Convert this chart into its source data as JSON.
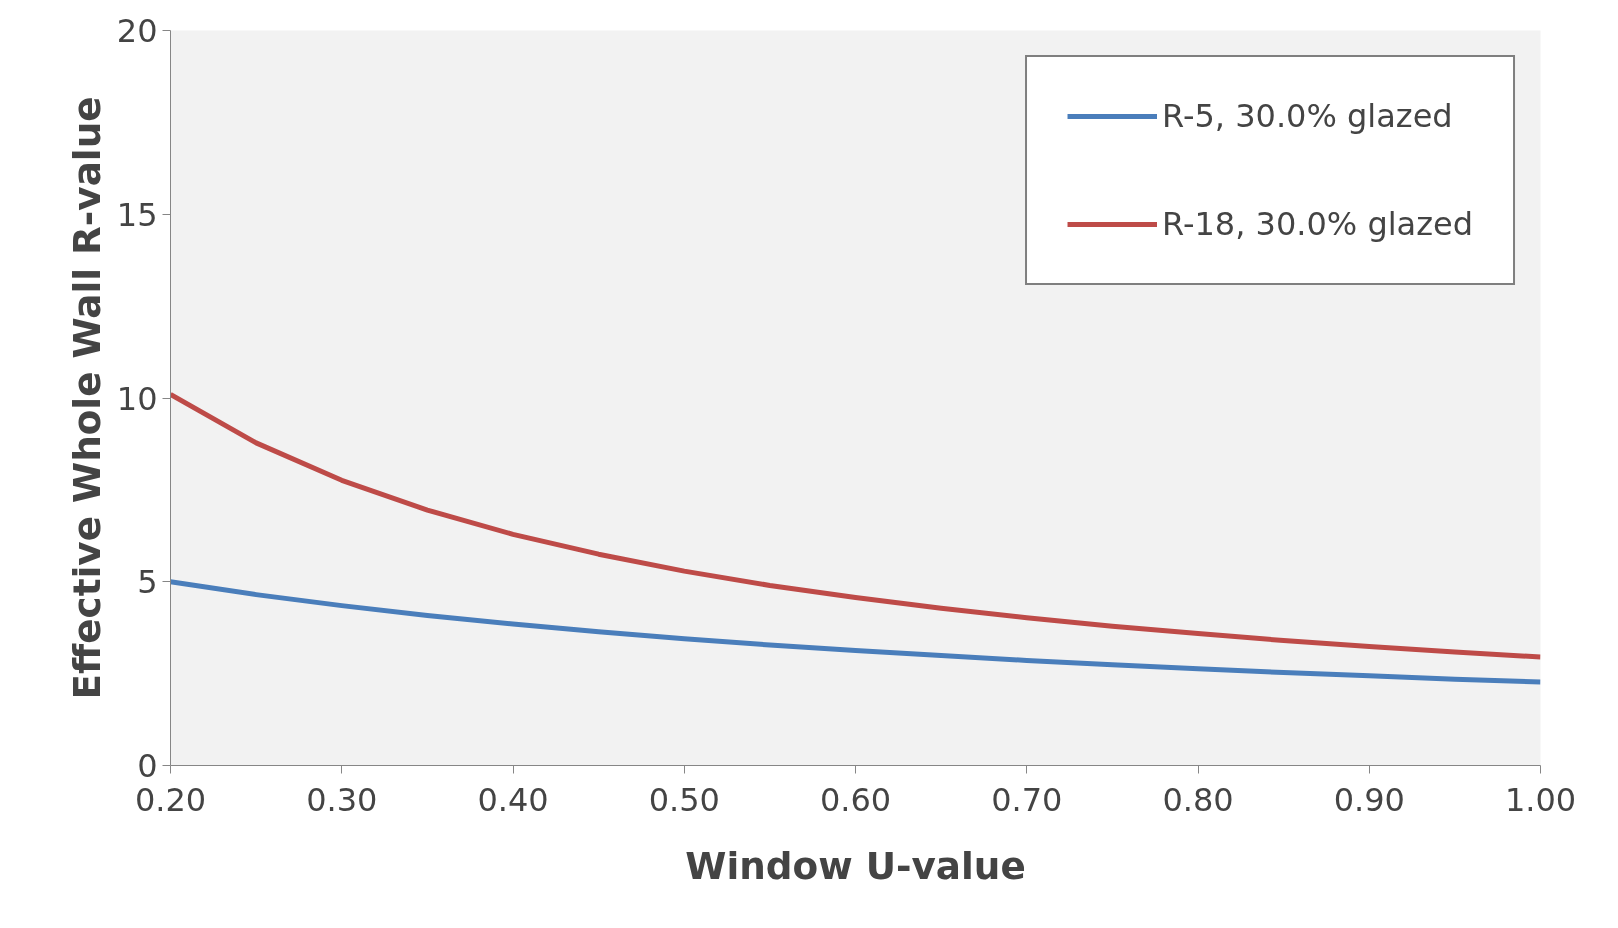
{
  "chart_data": {
    "type": "line",
    "xlabel": "Window U-value",
    "ylabel": "Effective Whole Wall R-value",
    "x": [
      0.2,
      0.25,
      0.3,
      0.35,
      0.4,
      0.45,
      0.5,
      0.55,
      0.6,
      0.65,
      0.7,
      0.75,
      0.8,
      0.85,
      0.9,
      0.95,
      1.0
    ],
    "series": [
      {
        "name": "R-5, 30.0% glazed",
        "color": "#4a7ebb",
        "values": [
          5.0,
          4.65,
          4.35,
          4.08,
          3.85,
          3.64,
          3.45,
          3.28,
          3.13,
          2.99,
          2.86,
          2.74,
          2.63,
          2.53,
          2.44,
          2.35,
          2.27
        ]
      },
      {
        "name": "R-18, 30.0% glazed",
        "color": "#be4b48",
        "values": [
          10.1,
          8.78,
          7.76,
          6.95,
          6.29,
          5.75,
          5.29,
          4.9,
          4.57,
          4.28,
          4.02,
          3.79,
          3.59,
          3.4,
          3.24,
          3.09,
          2.95
        ]
      }
    ],
    "xlim": [
      0.2,
      1.0
    ],
    "xticks": [
      {
        "value": 0.2,
        "label": "0.20"
      },
      {
        "value": 0.3,
        "label": "0.30"
      },
      {
        "value": 0.4,
        "label": "0.40"
      },
      {
        "value": 0.5,
        "label": "0.50"
      },
      {
        "value": 0.6,
        "label": "0.60"
      },
      {
        "value": 0.7,
        "label": "0.70"
      },
      {
        "value": 0.8,
        "label": "0.80"
      },
      {
        "value": 0.9,
        "label": "0.90"
      },
      {
        "value": 1.0,
        "label": "1.00"
      }
    ],
    "ylim": [
      0,
      20
    ],
    "yticks": [
      0,
      5,
      10,
      15,
      20
    ],
    "grid": false,
    "legend": "top right",
    "marker": "none",
    "line_style": "solid"
  }
}
